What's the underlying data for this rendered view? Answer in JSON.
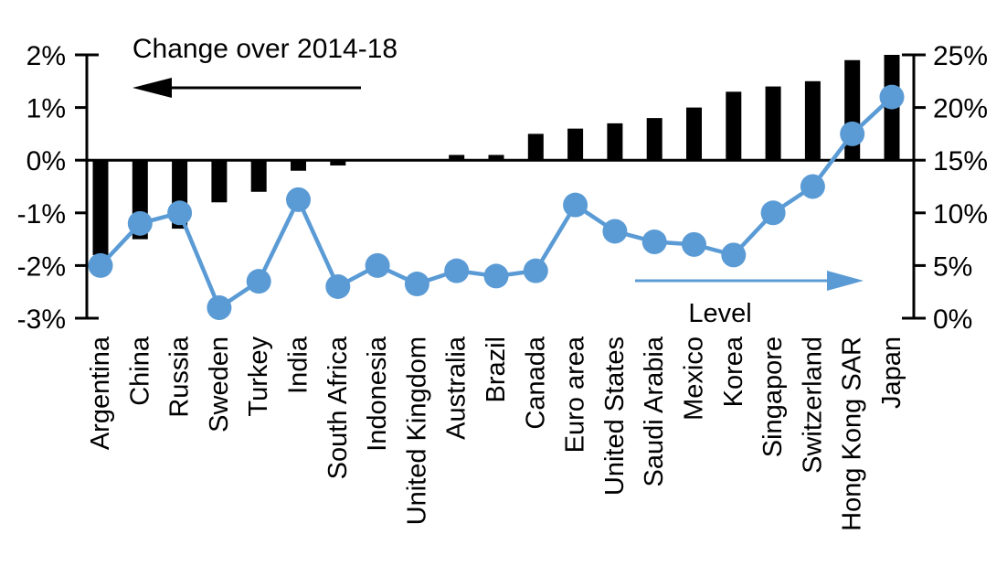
{
  "chart_data": {
    "type": "bar",
    "subtype": "dual-axis bar + line",
    "title": "Change over 2014-18",
    "level_label": "Level",
    "categories": [
      "Argentina",
      "China",
      "Russia",
      "Sweden",
      "Turkey",
      "India",
      "South Africa",
      "Indonesia",
      "United Kingdom",
      "Australia",
      "Brazil",
      "Canada",
      "Euro area",
      "United States",
      "Saudi Arabia",
      "Mexico",
      "Korea",
      "Singapore",
      "Switzerland",
      "Hong Kong SAR",
      "Japan"
    ],
    "series": [
      {
        "name": "Change over 2014-18",
        "type": "bar",
        "axis": "left",
        "values": [
          -1.8,
          -1.5,
          -1.3,
          -0.8,
          -0.6,
          -0.2,
          -0.1,
          0,
          0,
          0.1,
          0.1,
          0.5,
          0.6,
          0.7,
          0.8,
          1.0,
          1.3,
          1.4,
          1.5,
          1.9,
          2.0
        ]
      },
      {
        "name": "Level",
        "type": "line",
        "axis": "right",
        "values": [
          5,
          9,
          10,
          1,
          3.5,
          11.25,
          3,
          5,
          3.25,
          4.5,
          4,
          4.5,
          10.75,
          8.25,
          7.25,
          7,
          6,
          10,
          12.5,
          17.5,
          21
        ]
      }
    ],
    "left_axis": {
      "tick_labels": [
        "2%",
        "1%",
        "0%",
        "-1%",
        "-2%",
        "-3%"
      ],
      "tick_values": [
        2,
        1,
        0,
        -1,
        -2,
        -3
      ],
      "range": [
        -3,
        2
      ]
    },
    "right_axis": {
      "tick_labels": [
        "25%",
        "20%",
        "15%",
        "10%",
        "5%",
        "0%"
      ],
      "tick_values": [
        25,
        20,
        15,
        10,
        5,
        0
      ],
      "range": [
        0,
        25
      ]
    },
    "colors": {
      "bar": "#000000",
      "line": "#5B9BD5",
      "axis": "#000000",
      "background": "#FFFFFF"
    },
    "grid": "none",
    "legend_position": "in-plot annotations with arrows",
    "annotations": [
      {
        "text": "Change over 2014-18",
        "arrow": "left",
        "color": "#000000"
      },
      {
        "text": "Level",
        "arrow": "right",
        "color": "#5B9BD5"
      }
    ]
  }
}
